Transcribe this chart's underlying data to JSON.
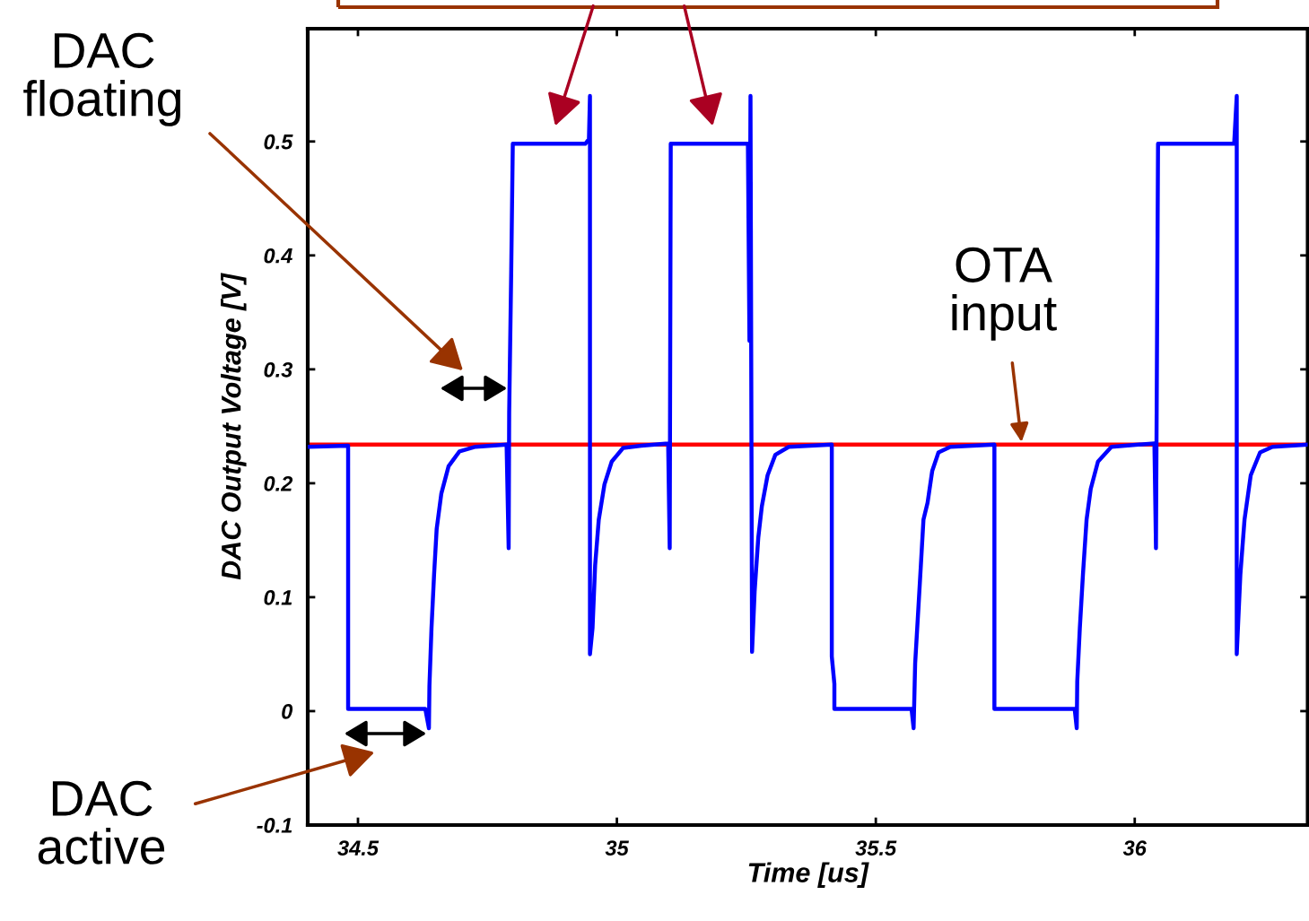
{
  "chart_data": {
    "type": "line",
    "xlabel": "Time [us]",
    "ylabel": "DAC Output Voltage [V]",
    "xlim": [
      34.403,
      36.334
    ],
    "ylim": [
      -0.1,
      0.599
    ],
    "xticks": [
      34.5,
      35,
      35.5,
      36
    ],
    "yticks": [
      {
        "value": -0.1,
        "label": "-0.1"
      },
      0,
      0.1,
      0.2,
      0.3,
      0.4,
      0.5
    ],
    "grid": false,
    "legend": false,
    "marker": "none",
    "line_style": "solid",
    "series": [
      {
        "color": "#0000ff",
        "x": [
          34.403,
          34.481,
          34.481,
          34.63,
          34.637,
          34.638,
          34.642,
          34.647,
          34.652,
          34.661,
          34.675,
          34.696,
          34.727,
          34.787,
          34.791,
          34.792,
          34.796,
          34.799,
          34.939,
          34.946,
          34.948,
          34.948,
          34.953,
          34.958,
          34.965,
          34.976,
          34.99,
          35.012,
          35.047,
          35.099,
          35.102,
          35.104,
          35.253,
          35.256,
          35.258,
          35.261,
          35.266,
          35.273,
          35.28,
          35.291,
          35.306,
          35.332,
          35.415,
          35.415,
          35.42,
          35.42,
          35.569,
          35.573,
          35.576,
          35.581,
          35.587,
          35.592,
          35.6,
          35.609,
          35.621,
          35.644,
          35.729,
          35.729,
          35.884,
          35.888,
          35.889,
          35.894,
          35.9,
          35.907,
          35.915,
          35.929,
          35.955,
          36.038,
          36.041,
          36.045,
          36.192,
          36.197,
          36.197,
          36.204,
          36.212,
          36.224,
          36.242,
          36.266,
          36.334
        ],
        "values": [
          0.232,
          0.233,
          0.002,
          0.002,
          -0.015,
          0.022,
          0.073,
          0.12,
          0.16,
          0.191,
          0.215,
          0.228,
          0.232,
          0.234,
          0.143,
          0.262,
          0.388,
          0.498,
          0.498,
          0.502,
          0.54,
          0.05,
          0.073,
          0.128,
          0.168,
          0.199,
          0.219,
          0.231,
          0.233,
          0.235,
          0.143,
          0.498,
          0.498,
          0.325,
          0.54,
          0.052,
          0.105,
          0.152,
          0.18,
          0.207,
          0.225,
          0.232,
          0.234,
          0.048,
          0.024,
          0.002,
          0.002,
          -0.015,
          0.042,
          0.081,
          0.128,
          0.168,
          0.183,
          0.211,
          0.227,
          0.232,
          0.234,
          0.002,
          0.002,
          -0.015,
          0.026,
          0.073,
          0.12,
          0.168,
          0.195,
          0.219,
          0.232,
          0.235,
          0.143,
          0.498,
          0.498,
          0.54,
          0.05,
          0.12,
          0.168,
          0.207,
          0.227,
          0.232,
          0.234
        ]
      }
    ],
    "ref_lines": [
      {
        "axis": "y",
        "value": 0.234,
        "color": "#ff0000"
      }
    ],
    "annotations": [
      "DAC\nfloating",
      "DAC\nactive",
      {
        "text": "OTA\ninput",
        "x": 35.782,
        "y": 0.234
      }
    ]
  }
}
